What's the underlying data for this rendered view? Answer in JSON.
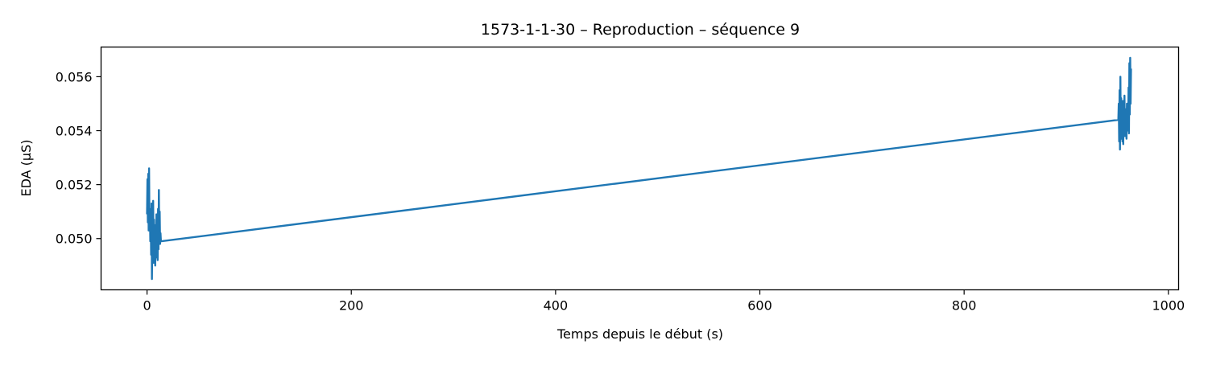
{
  "chart_data": {
    "type": "line",
    "title": "1573-1-1-30 – Reproduction – séquence 9",
    "xlabel": "Temps depuis le début (s)",
    "ylabel": "EDA (µS)",
    "xlim": [
      -45,
      1010
    ],
    "ylim": [
      0.0481,
      0.0571
    ],
    "xticks": [
      0,
      200,
      400,
      600,
      800,
      1000
    ],
    "xtick_labels": [
      "0",
      "200",
      "400",
      "600",
      "800",
      "1000"
    ],
    "yticks": [
      0.05,
      0.052,
      0.054,
      0.056
    ],
    "ytick_labels": [
      "0.050",
      "0.052",
      "0.054",
      "0.056"
    ],
    "grid": false,
    "legend": "none",
    "series": [
      {
        "color": "#1f77b4",
        "x": [
          0.0,
          0.4,
          0.8,
          1.2,
          1.6,
          2.0,
          2.4,
          2.8,
          3.2,
          3.6,
          4.0,
          4.4,
          4.8,
          5.2,
          5.6,
          6.0,
          6.4,
          6.8,
          7.2,
          7.6,
          8.0,
          8.4,
          8.8,
          9.2,
          9.6,
          10.0,
          10.4,
          10.8,
          11.2,
          11.6,
          12.0,
          12.4,
          12.8,
          13.2,
          13.6,
          14.0,
          951.0,
          951.4,
          951.8,
          952.2,
          952.6,
          953.0,
          953.4,
          953.8,
          954.2,
          954.6,
          955.0,
          955.4,
          955.8,
          956.2,
          956.6,
          957.0,
          957.4,
          957.8,
          958.2,
          958.6,
          959.0,
          959.4,
          959.8,
          960.2,
          960.6,
          961.0,
          961.4,
          961.8,
          962.2,
          962.6,
          963.0,
          963.4
        ],
        "y": [
          0.0509,
          0.0522,
          0.0506,
          0.0524,
          0.0503,
          0.0526,
          0.0504,
          0.0511,
          0.0499,
          0.051,
          0.0494,
          0.0513,
          0.0485,
          0.0502,
          0.0493,
          0.0514,
          0.0491,
          0.0507,
          0.0494,
          0.0505,
          0.049,
          0.0501,
          0.0493,
          0.0509,
          0.0494,
          0.0505,
          0.0492,
          0.0511,
          0.0496,
          0.0518,
          0.0499,
          0.051,
          0.0498,
          0.0502,
          0.0499,
          0.0499,
          0.0544,
          0.055,
          0.0536,
          0.0555,
          0.0533,
          0.056,
          0.0538,
          0.0552,
          0.0537,
          0.0549,
          0.0536,
          0.0551,
          0.0535,
          0.0546,
          0.0539,
          0.0553,
          0.0538,
          0.0548,
          0.054,
          0.0547,
          0.0537,
          0.055,
          0.0542,
          0.0545,
          0.054,
          0.0556,
          0.0539,
          0.0565,
          0.0546,
          0.0567,
          0.055,
          0.0563
        ]
      }
    ]
  }
}
